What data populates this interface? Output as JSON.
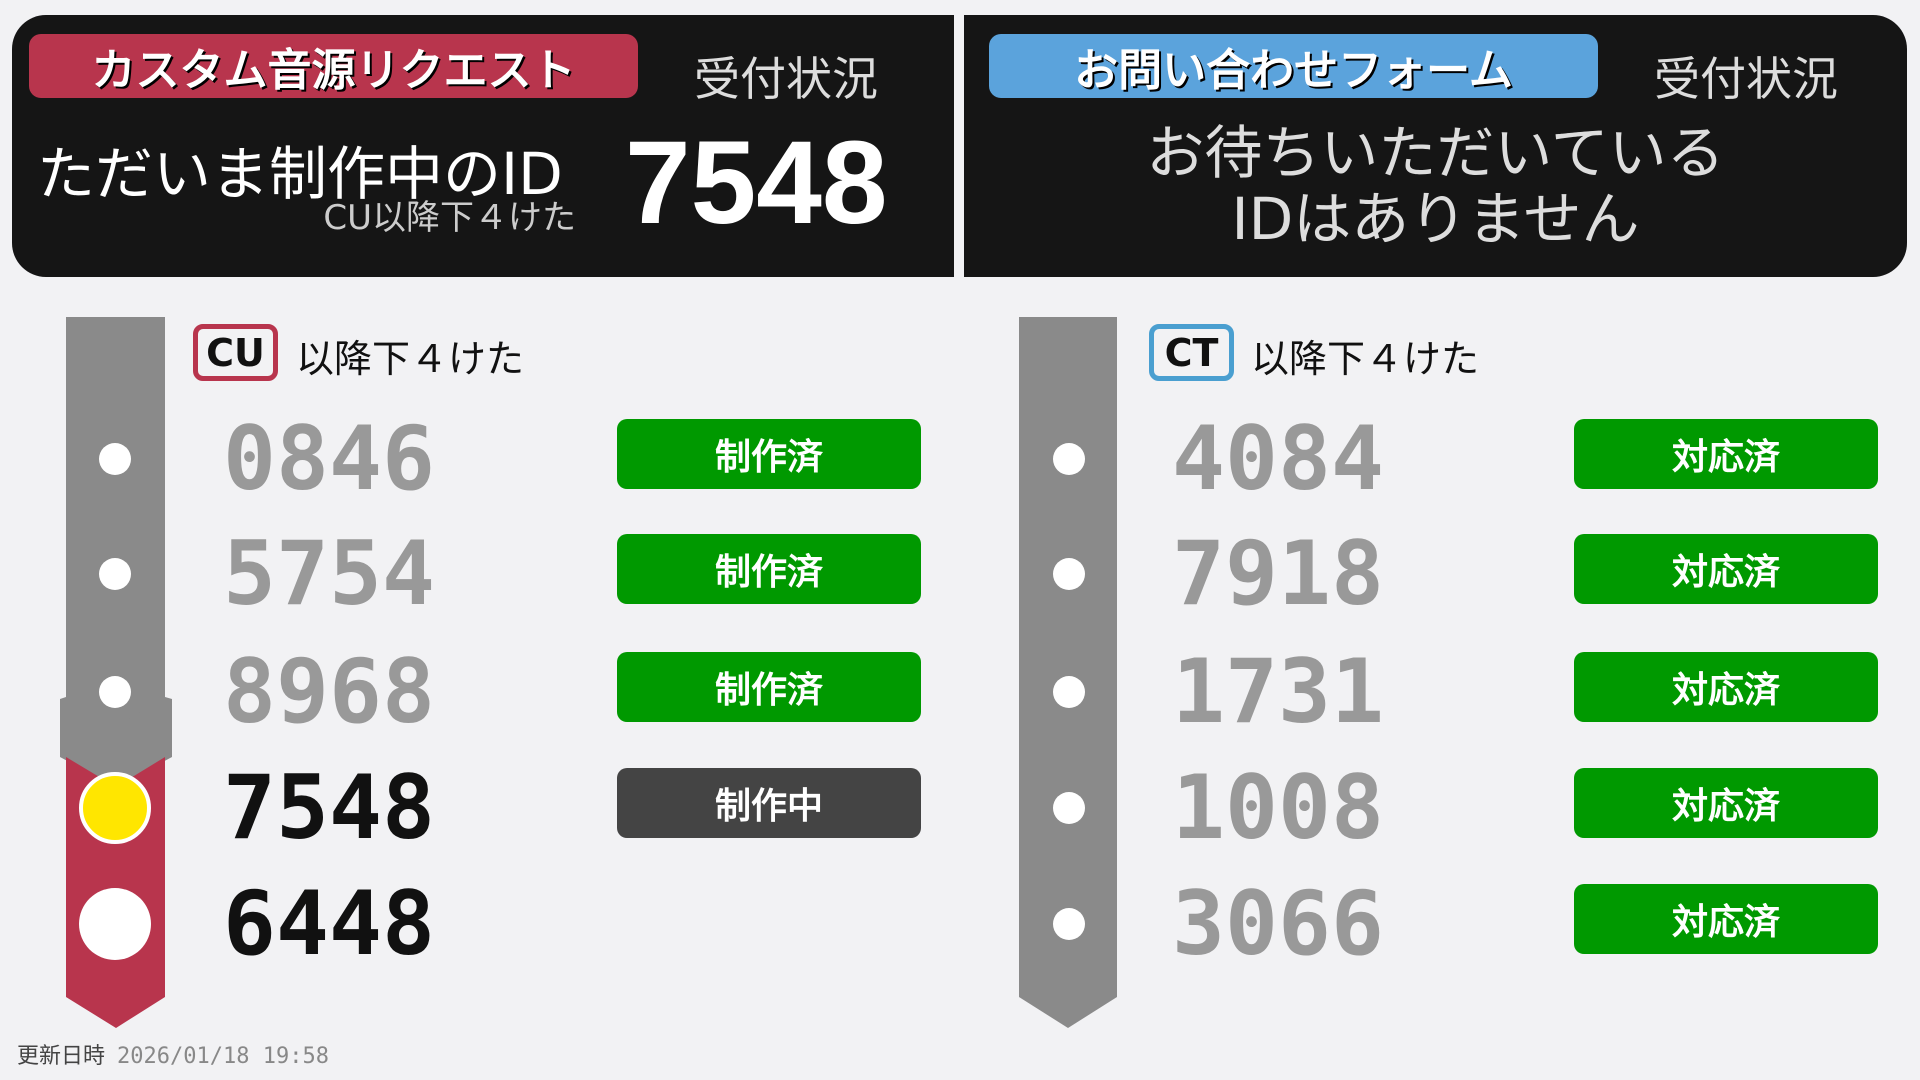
{
  "colors": {
    "custom": "#b8354d",
    "contact": "#5ba3dc",
    "done": "#009900",
    "in_progress": "#444444",
    "current_dot": "#ffe600",
    "track": "#8a8a8a"
  },
  "left_panel": {
    "title": "カスタム音源リクエスト",
    "status_label": "受付状況",
    "now_label": "ただいま制作中のID",
    "now_sub": "CU以降下４けた",
    "now_id": "7548"
  },
  "right_panel": {
    "title": "お問い合わせフォーム",
    "status_label": "受付状況",
    "message_line1": "お待ちいただいている",
    "message_line2": "IDはありません"
  },
  "left_list": {
    "prefix": "CU",
    "label": "以降下４けた",
    "items": [
      {
        "id": "0846",
        "status": "制作済",
        "state": "done"
      },
      {
        "id": "5754",
        "status": "制作済",
        "state": "done"
      },
      {
        "id": "8968",
        "status": "制作済",
        "state": "done"
      },
      {
        "id": "7548",
        "status": "制作中",
        "state": "in_progress"
      },
      {
        "id": "6448",
        "status": "",
        "state": "waiting"
      }
    ]
  },
  "right_list": {
    "prefix": "CT",
    "label": "以降下４けた",
    "items": [
      {
        "id": "4084",
        "status": "対応済",
        "state": "done"
      },
      {
        "id": "7918",
        "status": "対応済",
        "state": "done"
      },
      {
        "id": "1731",
        "status": "対応済",
        "state": "done"
      },
      {
        "id": "1008",
        "status": "対応済",
        "state": "done"
      },
      {
        "id": "3066",
        "status": "対応済",
        "state": "done"
      }
    ]
  },
  "footer": {
    "label": "更新日時",
    "timestamp": "2026/01/18 19:58"
  }
}
